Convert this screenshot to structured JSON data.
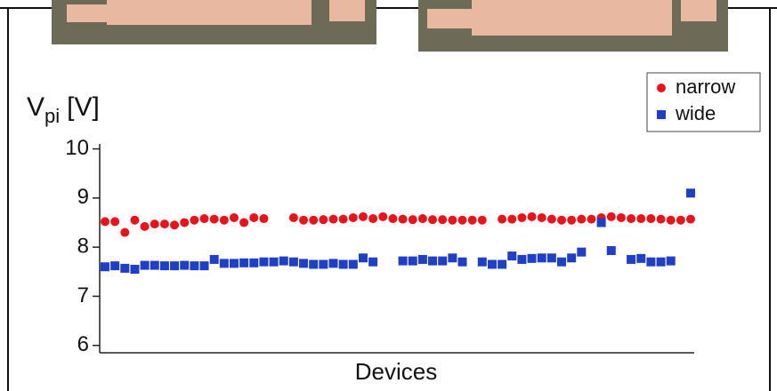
{
  "chart_data": {
    "type": "scatter",
    "ylabel": {
      "main": "V",
      "sub": "pi",
      "unit": "[V]"
    },
    "xlabel": "Devices",
    "categories": [
      null,
      null,
      null,
      null,
      null,
      null,
      null,
      null,
      null,
      null,
      null,
      null,
      null,
      null,
      null,
      null,
      null,
      null,
      null,
      null,
      null,
      null,
      null,
      null,
      null,
      null,
      null,
      null,
      null,
      null,
      null,
      null,
      null,
      null,
      null,
      null,
      null,
      null,
      null,
      null,
      null,
      null,
      null,
      null,
      null,
      null,
      null,
      null,
      null,
      null,
      null,
      null,
      null,
      null,
      null,
      null,
      null,
      null,
      null,
      null
    ],
    "series": [
      {
        "name": "narrow",
        "color": "#e8141b",
        "marker": "circle",
        "values": [
          8.52,
          8.52,
          8.3,
          8.55,
          8.42,
          8.47,
          8.47,
          8.45,
          8.5,
          8.55,
          8.58,
          8.57,
          8.55,
          8.6,
          8.5,
          8.6,
          8.58,
          null,
          null,
          8.6,
          8.55,
          8.55,
          8.56,
          8.57,
          8.57,
          8.6,
          8.62,
          8.58,
          8.62,
          8.58,
          8.57,
          8.56,
          8.58,
          8.56,
          8.56,
          8.55,
          8.55,
          8.55,
          8.55,
          null,
          8.57,
          8.57,
          8.6,
          8.62,
          8.6,
          8.57,
          8.55,
          8.55,
          8.57,
          8.57,
          8.6,
          8.62,
          8.6,
          8.58,
          8.58,
          8.58,
          8.57,
          8.55,
          8.55,
          8.57
        ]
      },
      {
        "name": "wide",
        "color": "#1f3fc4",
        "marker": "square",
        "values": [
          7.6,
          7.62,
          7.57,
          7.55,
          7.63,
          7.63,
          7.62,
          7.62,
          7.63,
          7.62,
          7.62,
          7.75,
          7.67,
          7.67,
          7.68,
          7.68,
          7.7,
          7.7,
          7.72,
          7.7,
          7.67,
          7.65,
          7.65,
          7.67,
          7.65,
          7.65,
          7.78,
          7.7,
          null,
          null,
          7.72,
          7.72,
          7.75,
          7.72,
          7.72,
          7.78,
          7.7,
          null,
          7.7,
          7.65,
          7.65,
          7.82,
          7.75,
          7.77,
          7.78,
          7.78,
          7.7,
          7.78,
          7.9,
          null,
          8.5,
          7.93,
          null,
          7.75,
          7.77,
          7.7,
          7.7,
          7.72,
          null,
          9.1
        ]
      }
    ],
    "ylim": [
      5.85,
      10.1
    ],
    "yticks": [
      6,
      7,
      8,
      9,
      10
    ],
    "legend": "top-right"
  }
}
